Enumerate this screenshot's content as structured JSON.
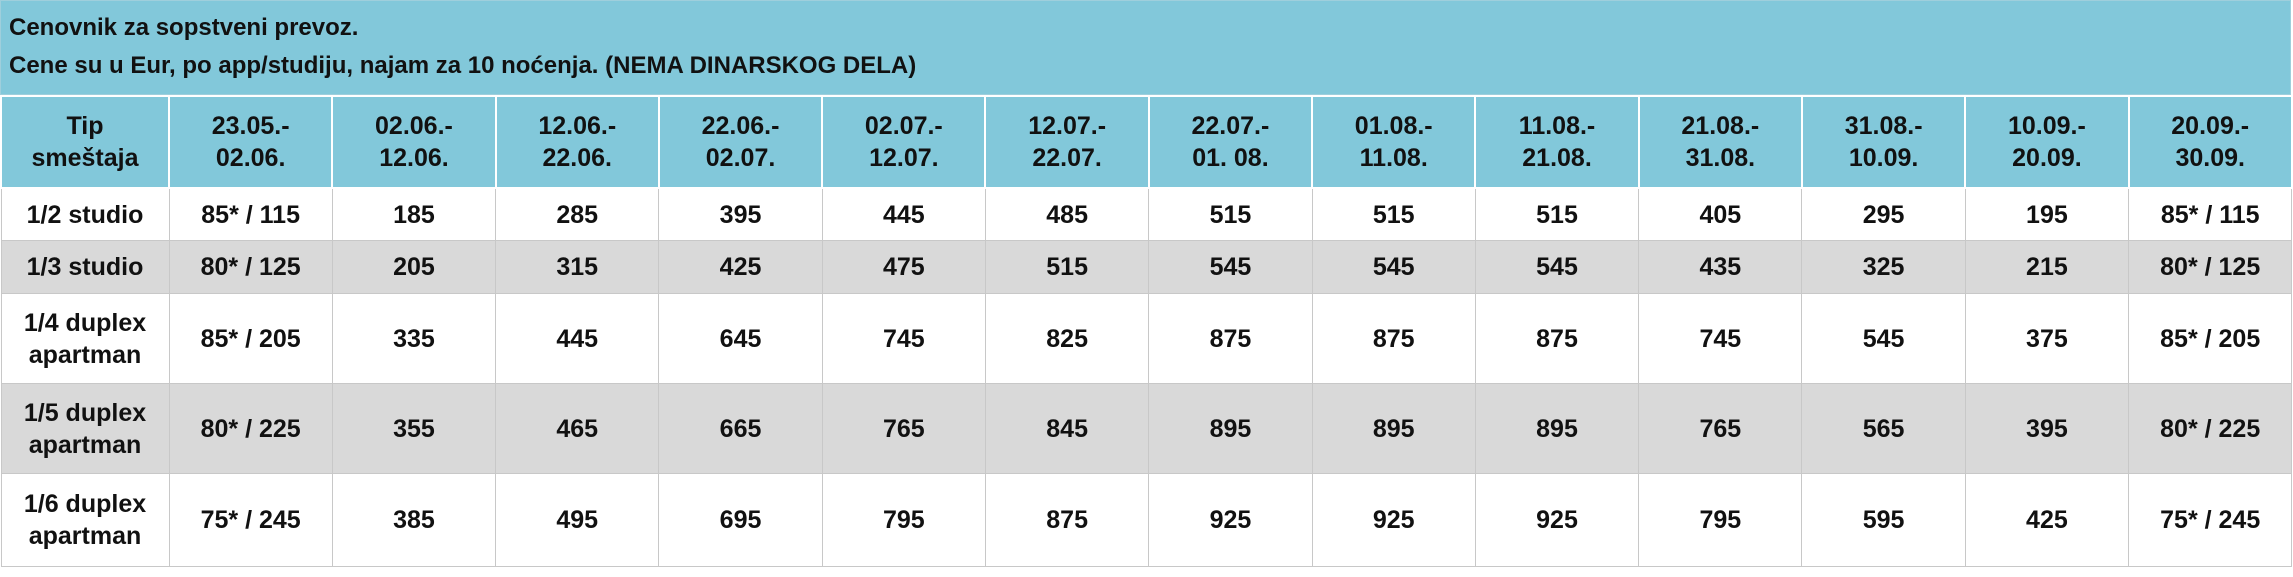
{
  "header": {
    "title_lines": [
      "Cenovnik za sopstveni prevoz.",
      "Cene su u Eur, po app/studiju, najam za 10 noćenja. (NEMA DINARSKOG DELA)"
    ]
  },
  "table": {
    "columns": [
      [
        "Tip",
        "smeštaja"
      ],
      [
        "23.05.-",
        "02.06."
      ],
      [
        "02.06.-",
        "12.06."
      ],
      [
        "12.06.-",
        "22.06."
      ],
      [
        "22.06.-",
        "02.07."
      ],
      [
        "02.07.-",
        "12.07."
      ],
      [
        "12.07.-",
        "22.07."
      ],
      [
        "22.07.-",
        "01. 08."
      ],
      [
        "01.08.-",
        "11.08."
      ],
      [
        "11.08.-",
        "21.08."
      ],
      [
        "21.08.-",
        "31.08."
      ],
      [
        "31.08.-",
        "10.09."
      ],
      [
        "10.09.-",
        "20.09."
      ],
      [
        "20.09.-",
        "30.09."
      ]
    ],
    "rows": [
      {
        "label": [
          "1/2 studio"
        ],
        "cells": [
          "85* / 115",
          "185",
          "285",
          "395",
          "445",
          "485",
          "515",
          "515",
          "515",
          "405",
          "295",
          "195",
          "85* / 115"
        ]
      },
      {
        "label": [
          "1/3 studio"
        ],
        "cells": [
          "80* / 125",
          "205",
          "315",
          "425",
          "475",
          "515",
          "545",
          "545",
          "545",
          "435",
          "325",
          "215",
          "80* / 125"
        ]
      },
      {
        "label": [
          "1/4 duplex",
          "apartman"
        ],
        "cells": [
          "85* / 205",
          "335",
          "445",
          "645",
          "745",
          "825",
          "875",
          "875",
          "875",
          "745",
          "545",
          "375",
          "85* / 205"
        ]
      },
      {
        "label": [
          "1/5 duplex",
          "apartman"
        ],
        "cells": [
          "80* / 225",
          "355",
          "465",
          "665",
          "765",
          "845",
          "895",
          "895",
          "895",
          "765",
          "565",
          "395",
          "80* / 225"
        ]
      },
      {
        "label": [
          "1/6 duplex",
          "apartman"
        ],
        "cells": [
          "75* / 245",
          "385",
          "495",
          "695",
          "795",
          "875",
          "925",
          "925",
          "925",
          "795",
          "595",
          "425",
          "75* / 245"
        ]
      }
    ]
  }
}
